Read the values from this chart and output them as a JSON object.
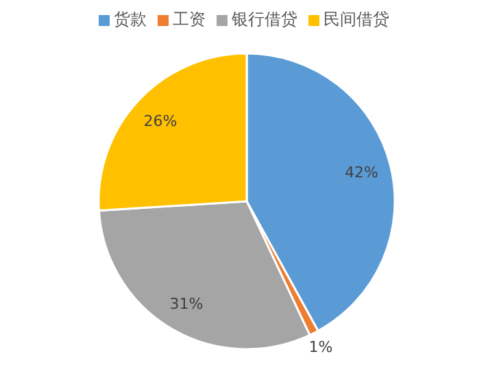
{
  "chart_data": {
    "type": "pie",
    "categories": [
      "货款",
      "工资",
      "银行借贷",
      "民间借贷"
    ],
    "values": [
      42,
      1,
      31,
      26
    ],
    "colors": [
      "#5b9bd5",
      "#ed7d31",
      "#a5a5a5",
      "#ffc000"
    ],
    "value_labels": [
      "42%",
      "1%",
      "31%",
      "26%"
    ],
    "legend": "top"
  }
}
